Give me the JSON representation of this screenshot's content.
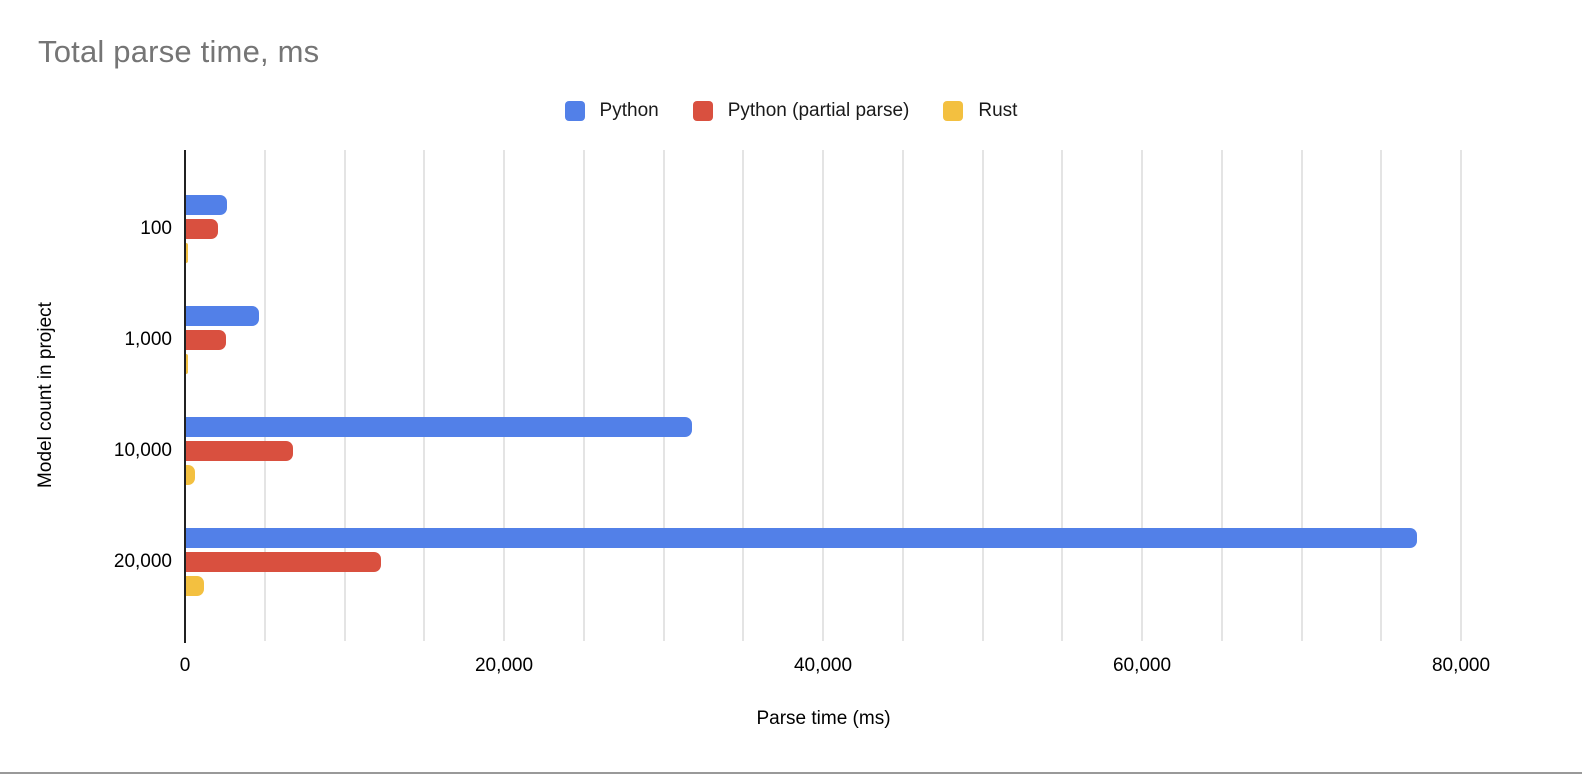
{
  "page": {
    "title": "Total parse time, ms"
  },
  "chart_data": {
    "type": "bar",
    "orientation": "horizontal",
    "title": "Total parse time, ms",
    "xlabel": "Parse time (ms)",
    "ylabel": "Model count in project",
    "categories": [
      "100",
      "1,000",
      "10,000",
      "20,000"
    ],
    "series": [
      {
        "name": "Python",
        "color": "#5280E8",
        "values": [
          2600,
          4600,
          31700,
          77200
        ]
      },
      {
        "name": "Python (partial parse)",
        "color": "#D9503F",
        "values": [
          2000,
          2500,
          6700,
          12200
        ]
      },
      {
        "name": "Rust",
        "color": "#F3C040",
        "values": [
          150,
          120,
          550,
          1100
        ]
      }
    ],
    "xlim": [
      0,
      80000
    ],
    "x_tick_step": 20000,
    "x_tick_labels": [
      "0",
      "20,000",
      "40,000",
      "60,000",
      "80,000"
    ],
    "grid_step": 5000,
    "grid": true,
    "legend_position": "top",
    "title_color": "#757575",
    "axis_line_color": "#212121",
    "gridline_color": "#e4e4e4"
  }
}
